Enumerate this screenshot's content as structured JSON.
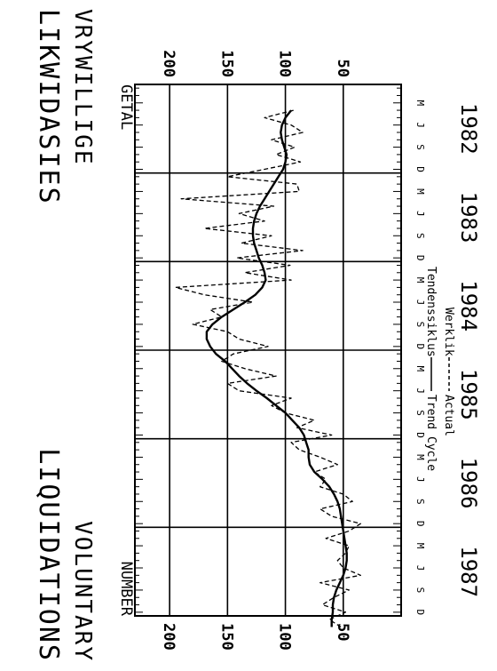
{
  "chart_data": {
    "type": "line",
    "title_af": "LIKWIDASIES",
    "subtitle_af": "VRYWILLIGE",
    "title_en": "LIQUIDATIONS",
    "subtitle_en": "VOLUNTARY",
    "ylabel_left": "GETAL",
    "ylabel_right": "NUMBER",
    "ylim": [
      0,
      230
    ],
    "yticks": [
      50,
      100,
      150,
      200
    ],
    "ytick_labels": [
      "50",
      "100",
      "150",
      "200"
    ],
    "month_labels": [
      "M",
      "J",
      "S",
      "D"
    ],
    "month_index_offsets": [
      2,
      5,
      8,
      11
    ],
    "years": [
      "1982",
      "1983",
      "1984",
      "1985",
      "1986",
      "1987"
    ],
    "x_start": "1982-01",
    "x_end": "1987-12",
    "grid": true,
    "legend": [
      {
        "af": "Tendenssiklus",
        "en": "Trend Cycle",
        "style": "solid"
      },
      {
        "af": "Werklik",
        "en": "Actual",
        "style": "dashed"
      }
    ],
    "series": [
      {
        "name": "Trend Cycle",
        "style": "solid",
        "start": "1982-04",
        "values": [
          95,
          100,
          103,
          104,
          103,
          101,
          99,
          100,
          102,
          106,
          110,
          114,
          118,
          122,
          125,
          127,
          128,
          128,
          127,
          125,
          123,
          120,
          118,
          117,
          120,
          126,
          135,
          145,
          155,
          163,
          168,
          168,
          165,
          160,
          152,
          146,
          140,
          133,
          125,
          116,
          108,
          100,
          94,
          88,
          84,
          82,
          80,
          80,
          79,
          75,
          68,
          62,
          58,
          55,
          53,
          52,
          51,
          50,
          49,
          48,
          47,
          47,
          48,
          50,
          53,
          56,
          58,
          59,
          59,
          60,
          60
        ]
      },
      {
        "name": "Actual",
        "style": "dashed",
        "start": "1982-04",
        "values": [
          93,
          118,
          95,
          85,
          112,
          92,
          108,
          87,
          118,
          150,
          90,
          88,
          190,
          110,
          140,
          118,
          170,
          112,
          138,
          85,
          142,
          96,
          135,
          95,
          195,
          170,
          128,
          165,
          155,
          180,
          150,
          140,
          115,
          145,
          155,
          135,
          108,
          150,
          140,
          95,
          112,
          100,
          75,
          90,
          60,
          95,
          88,
          70,
          55,
          75,
          65,
          70,
          50,
          42,
          70,
          60,
          35,
          45,
          65,
          45,
          48,
          55,
          50,
          35,
          70,
          45,
          58,
          68,
          48,
          62,
          52
        ]
      }
    ]
  }
}
